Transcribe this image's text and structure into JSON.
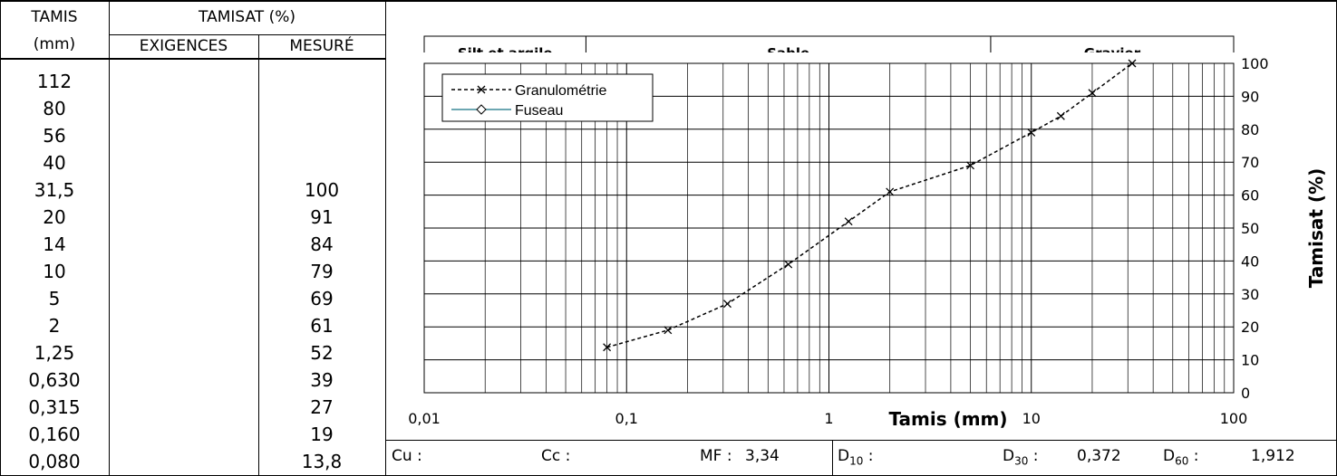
{
  "table": {
    "col1_header_1": "TAMIS",
    "col1_header_2": "(mm)",
    "col23_header": "TAMISAT (%)",
    "col2_header": "EXIGENCES",
    "col3_header": "MESURÉ",
    "sieves": [
      "112",
      "80",
      "56",
      "40",
      "31,5",
      "20",
      "14",
      "10",
      "5",
      "2",
      "1,25",
      "0,630",
      "0,315",
      "0,160",
      "0,080"
    ],
    "mesure": [
      "",
      "",
      "",
      "",
      "100",
      "91",
      "84",
      "79",
      "69",
      "61",
      "52",
      "39",
      "27",
      "19",
      "13,8"
    ],
    "exigences": [
      "",
      "",
      "",
      "",
      "",
      "",
      "",
      "",
      "",
      "",
      "",
      "",
      "",
      "",
      ""
    ]
  },
  "footer": {
    "cu_label": "Cu :",
    "cc_label": "Cc :",
    "mf_label": "MF :",
    "mf_value": "3,34",
    "d10_label": "D",
    "d10_sub": "10",
    "d10_colon": ":",
    "d30_label": "D",
    "d30_sub": "30",
    "d30_colon": ":",
    "d30_value": "0,372",
    "d60_label": "D",
    "d60_sub": "60",
    "d60_colon": ":",
    "d60_value": "1,912"
  },
  "chart_data": {
    "type": "line",
    "xscale": "log",
    "xlim": [
      0.01,
      100
    ],
    "ylim": [
      0,
      100
    ],
    "xlabel": "Tamis (mm)",
    "ylabel": "Tamisat (%)",
    "x_ticks": [
      "0,01",
      "0,1",
      "1",
      "10",
      "100"
    ],
    "y_ticks": [
      "0",
      "10",
      "20",
      "30",
      "40",
      "50",
      "60",
      "70",
      "80",
      "90",
      "100"
    ],
    "zones": [
      "Silt et argile",
      "Sable",
      "Gravier"
    ],
    "legend_position": "top-left",
    "grid": true,
    "series": [
      {
        "name": "Granulométrie",
        "style": "dashed",
        "marker": "x",
        "color": "#000000",
        "x": [
          0.08,
          0.16,
          0.315,
          0.63,
          1.25,
          2,
          5,
          10,
          14,
          20,
          31.5
        ],
        "y": [
          13.8,
          19,
          27,
          39,
          52,
          61,
          69,
          79,
          84,
          91,
          100
        ]
      },
      {
        "name": "Fuseau",
        "style": "solid",
        "marker": "diamond",
        "color": "#3d8a98",
        "x": [],
        "y": []
      }
    ]
  }
}
